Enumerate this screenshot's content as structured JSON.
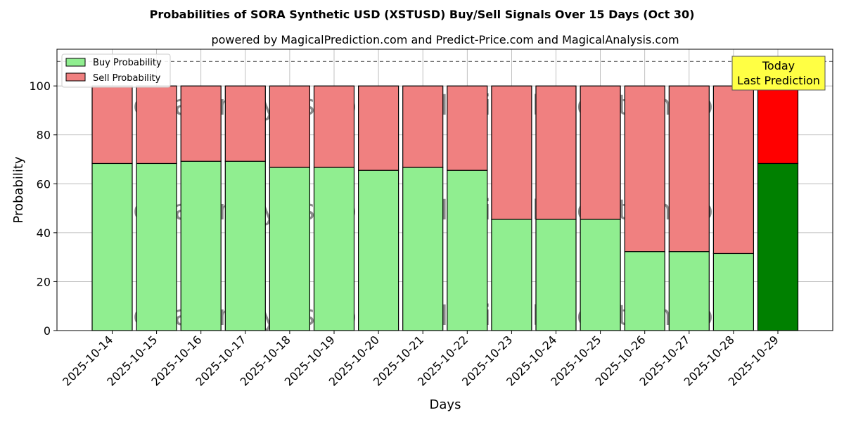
{
  "chart_data": {
    "type": "bar",
    "stacked": true,
    "title": "Probabilities of SORA Synthetic USD (XSTUSD) Buy/Sell Signals Over 15 Days (Oct 30)",
    "subtitle": "powered by MagicalPrediction.com and Predict-Price.com and MagicalAnalysis.com",
    "xlabel": "Days",
    "ylabel": "Probability",
    "ylim": [
      0,
      115
    ],
    "yticks": [
      0,
      20,
      40,
      60,
      80,
      100
    ],
    "grid": true,
    "legend_position": "top-left",
    "reference_line": 110,
    "categories": [
      "2025-10-14",
      "2025-10-15",
      "2025-10-16",
      "2025-10-17",
      "2025-10-18",
      "2025-10-19",
      "2025-10-20",
      "2025-10-21",
      "2025-10-22",
      "2025-10-23",
      "2025-10-24",
      "2025-10-25",
      "2025-10-26",
      "2025-10-27",
      "2025-10-28",
      "2025-10-29"
    ],
    "series": [
      {
        "name": "Buy Probability",
        "color": "#90ee90",
        "highlight_color": "#008000",
        "values": [
          68.3,
          68.3,
          69.2,
          69.2,
          66.7,
          66.7,
          65.5,
          66.7,
          65.5,
          45.5,
          45.5,
          45.5,
          32.3,
          32.3,
          31.5,
          68.3
        ]
      },
      {
        "name": "Sell Probability",
        "color": "#f08080",
        "highlight_color": "#ff0000",
        "values": [
          31.7,
          31.7,
          30.8,
          30.8,
          33.3,
          33.3,
          34.5,
          33.3,
          34.5,
          54.5,
          54.5,
          54.5,
          67.7,
          67.7,
          68.5,
          31.7
        ]
      }
    ],
    "annotation": {
      "line1": "Today",
      "line2": "Last Prediction",
      "color": "#ffff44"
    },
    "watermarks": [
      "MagicalAnalysis.com",
      "MagicalPrediction.com"
    ]
  }
}
